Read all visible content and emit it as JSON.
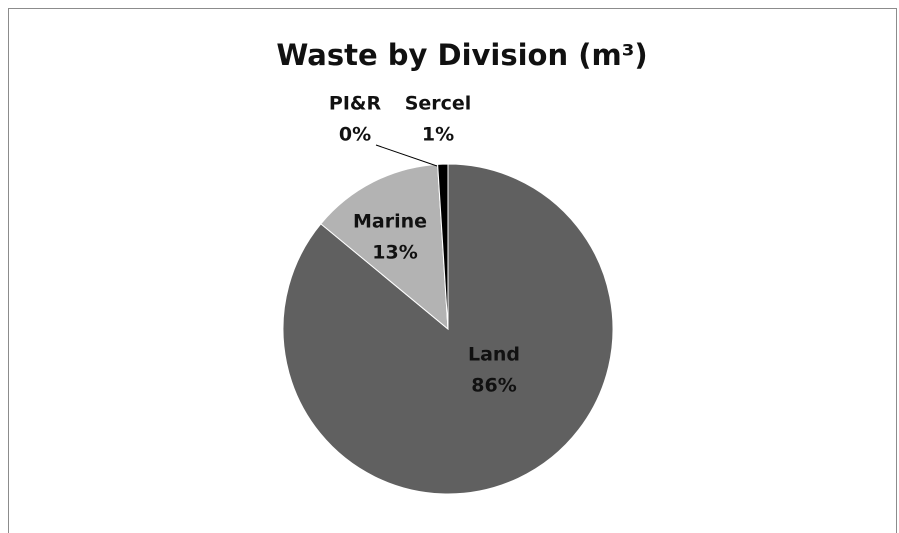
{
  "chart_data": {
    "type": "pie",
    "title": "Waste by Division (m³)",
    "categories": [
      "Land",
      "Marine",
      "PI&R",
      "Sercel"
    ],
    "values": [
      86,
      13,
      0,
      1
    ],
    "value_labels": [
      "86%",
      "13%",
      "0%",
      "1%"
    ],
    "colors": [
      "#606060",
      "#b3b3b3",
      "#ffffff",
      "#000000"
    ]
  }
}
